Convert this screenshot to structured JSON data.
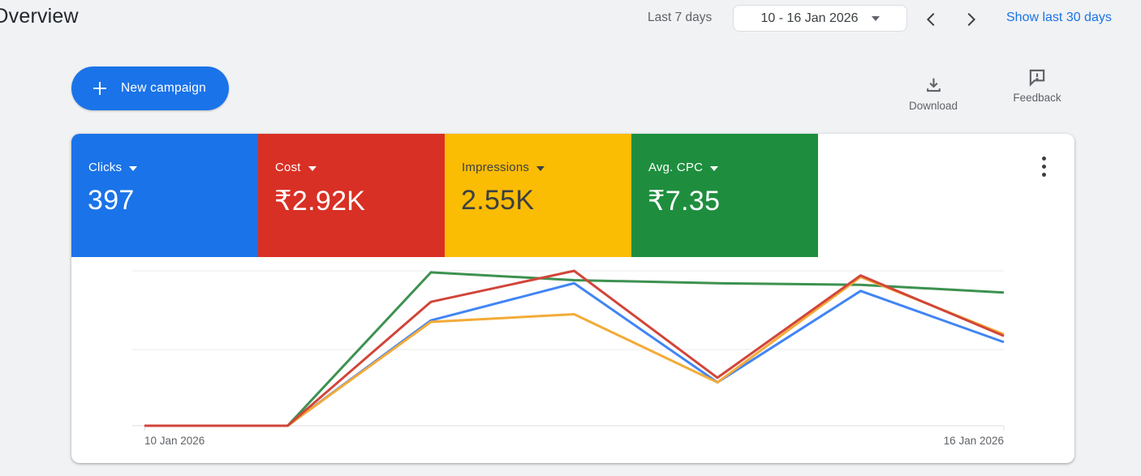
{
  "header": {
    "title": "Overview",
    "period_label": "Last 7 days",
    "date_range_value": "10 - 16 Jan 2026",
    "show_link": "Show last 30 days"
  },
  "actions": {
    "new_campaign": "New campaign",
    "download": "Download",
    "feedback": "Feedback"
  },
  "scorecards": [
    {
      "metric": "Clicks",
      "value": "397",
      "bg": "#1a73e8",
      "fg": "#ffffff"
    },
    {
      "metric": "Cost",
      "value": "₹2.92K",
      "bg": "#d93025",
      "fg": "#ffffff"
    },
    {
      "metric": "Impressions",
      "value": "2.55K",
      "bg": "#fbbc04",
      "fg": "#3c4043"
    },
    {
      "metric": "Avg. CPC",
      "value": "₹7.35",
      "bg": "#1e8e3e",
      "fg": "#ffffff"
    }
  ],
  "chart_data": {
    "type": "line",
    "x": [
      "10 Jan 2026",
      "11 Jan 2026",
      "12 Jan 2026",
      "13 Jan 2026",
      "14 Jan 2026",
      "15 Jan 2026",
      "16 Jan 2026"
    ],
    "x_labels_visible": [
      "10 Jan 2026",
      "16 Jan 2026"
    ],
    "y_axis": {
      "numeric_labels_shown": false,
      "scale": "relative 0-1 (1 = top gridline)",
      "gridlines": 3
    },
    "series": [
      {
        "name": "Clicks",
        "color": "#4285f4",
        "values": [
          0,
          0,
          0.68,
          0.92,
          0.28,
          0.87,
          0.54
        ]
      },
      {
        "name": "Cost",
        "color": "#d1453a",
        "values": [
          0,
          0,
          0.8,
          1.0,
          0.31,
          0.97,
          0.58
        ]
      },
      {
        "name": "Impressions",
        "color": "#f3ab38",
        "values": [
          0,
          0,
          0.67,
          0.72,
          0.28,
          0.96,
          0.59
        ]
      },
      {
        "name": "Avg. CPC",
        "color": "#3d9150",
        "values": [
          0,
          0,
          0.99,
          0.94,
          0.92,
          0.91,
          0.86
        ]
      }
    ],
    "legend": "none (series colors match scorecards)"
  }
}
